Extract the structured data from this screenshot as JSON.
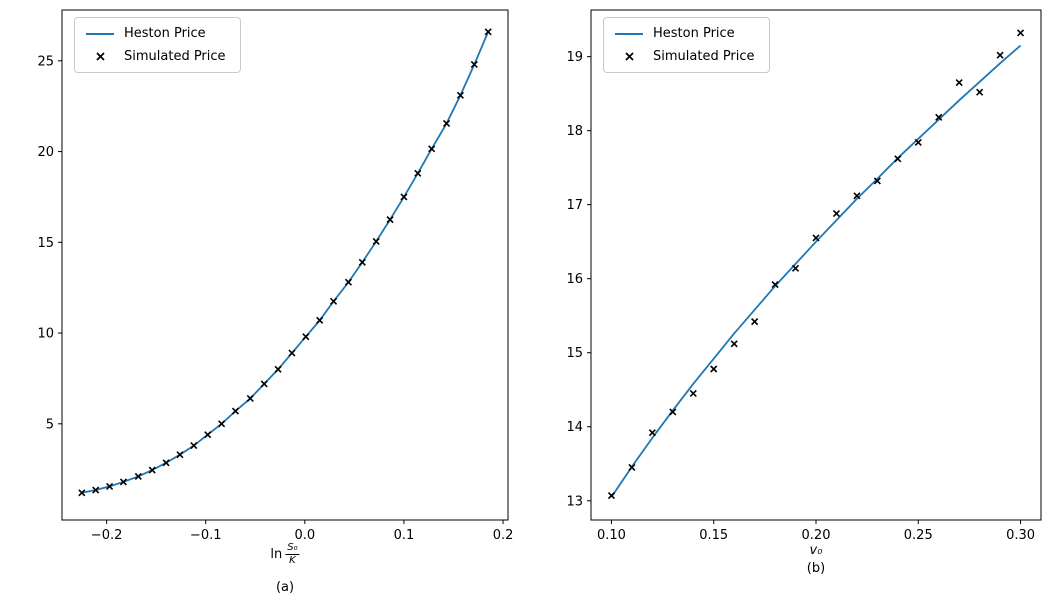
{
  "figure": {
    "background": "#ffffff",
    "line_color": "#1f77b4",
    "marker_color": "#000000"
  },
  "chart_data": [
    {
      "type": "line",
      "caption": "(a)",
      "xlabel": {
        "prefix": "ln",
        "numerator": "S₀",
        "denominator": "K"
      },
      "legend": [
        "Heston Price",
        "Simulated Price"
      ],
      "legend_position": "upper-left",
      "grid": false,
      "xlim": [
        -0.245,
        0.205
      ],
      "ylim": [
        -0.3,
        27.8
      ],
      "xticks": [
        -0.2,
        -0.1,
        0.0,
        0.1,
        0.2
      ],
      "xtick_labels": [
        "−0.2",
        "−0.1",
        "0.0",
        "0.1",
        "0.2"
      ],
      "yticks": [
        5,
        10,
        15,
        20,
        25
      ],
      "ytick_labels": [
        "5",
        "10",
        "15",
        "20",
        "25"
      ],
      "line_color": "#1f77b4",
      "series": [
        {
          "name": "Heston Price",
          "type": "line",
          "x": [
            -0.225,
            -0.211,
            -0.197,
            -0.183,
            -0.168,
            -0.154,
            -0.14,
            -0.126,
            -0.112,
            -0.098,
            -0.084,
            -0.07,
            -0.055,
            -0.041,
            -0.027,
            -0.013,
            0.001,
            0.015,
            0.029,
            0.044,
            0.058,
            0.072,
            0.086,
            0.1,
            0.114,
            0.128,
            0.143,
            0.157,
            0.171,
            0.185
          ],
          "y": [
            1.2,
            1.35,
            1.55,
            1.8,
            2.1,
            2.45,
            2.85,
            3.3,
            3.8,
            4.4,
            5.0,
            5.7,
            6.4,
            7.2,
            8.0,
            8.9,
            9.8,
            10.7,
            11.75,
            12.8,
            13.9,
            15.05,
            16.25,
            17.5,
            18.8,
            20.15,
            21.55,
            23.1,
            24.8,
            26.6
          ]
        },
        {
          "name": "Simulated Price",
          "type": "scatter",
          "x": [
            -0.225,
            -0.211,
            -0.197,
            -0.183,
            -0.168,
            -0.154,
            -0.14,
            -0.126,
            -0.112,
            -0.098,
            -0.084,
            -0.07,
            -0.055,
            -0.041,
            -0.027,
            -0.013,
            0.001,
            0.015,
            0.029,
            0.044,
            0.058,
            0.072,
            0.086,
            0.1,
            0.114,
            0.128,
            0.143,
            0.157,
            0.171,
            0.185
          ],
          "y": [
            1.2,
            1.35,
            1.55,
            1.8,
            2.1,
            2.45,
            2.85,
            3.3,
            3.8,
            4.4,
            5.0,
            5.7,
            6.4,
            7.2,
            8.0,
            8.9,
            9.8,
            10.7,
            11.75,
            12.8,
            13.9,
            15.05,
            16.25,
            17.5,
            18.8,
            20.15,
            21.55,
            23.1,
            24.8,
            26.6
          ]
        }
      ]
    },
    {
      "type": "line",
      "caption": "(b)",
      "xlabel": {
        "text": "v₀"
      },
      "legend": [
        "Heston Price",
        "Simulated Price"
      ],
      "legend_position": "upper-left",
      "grid": false,
      "xlim": [
        0.09,
        0.31
      ],
      "ylim": [
        12.74,
        19.63
      ],
      "xticks": [
        0.1,
        0.15,
        0.2,
        0.25,
        0.3
      ],
      "xtick_labels": [
        "0.10",
        "0.15",
        "0.20",
        "0.25",
        "0.30"
      ],
      "yticks": [
        13,
        14,
        15,
        16,
        17,
        18,
        19
      ],
      "ytick_labels": [
        "13",
        "14",
        "15",
        "16",
        "17",
        "18",
        "19"
      ],
      "line_color": "#1f77b4",
      "series": [
        {
          "name": "Heston Price",
          "type": "line",
          "x": [
            0.1,
            0.11,
            0.12,
            0.13,
            0.14,
            0.15,
            0.16,
            0.17,
            0.18,
            0.19,
            0.2,
            0.21,
            0.22,
            0.23,
            0.24,
            0.25,
            0.26,
            0.27,
            0.28,
            0.29,
            0.3
          ],
          "y": [
            13.05,
            13.46,
            13.85,
            14.22,
            14.58,
            14.92,
            15.26,
            15.58,
            15.9,
            16.2,
            16.5,
            16.79,
            17.08,
            17.35,
            17.63,
            17.89,
            18.15,
            18.41,
            18.66,
            18.91,
            19.15
          ]
        },
        {
          "name": "Simulated Price",
          "type": "scatter",
          "x": [
            0.1,
            0.11,
            0.12,
            0.13,
            0.14,
            0.15,
            0.16,
            0.17,
            0.18,
            0.19,
            0.2,
            0.21,
            0.22,
            0.23,
            0.24,
            0.25,
            0.26,
            0.27,
            0.28,
            0.29,
            0.3
          ],
          "y": [
            13.07,
            13.45,
            13.92,
            14.2,
            14.45,
            14.78,
            15.12,
            15.42,
            15.92,
            16.14,
            16.55,
            16.88,
            17.12,
            17.32,
            17.62,
            17.84,
            18.18,
            18.65,
            18.52,
            19.02,
            19.32
          ]
        }
      ]
    }
  ]
}
